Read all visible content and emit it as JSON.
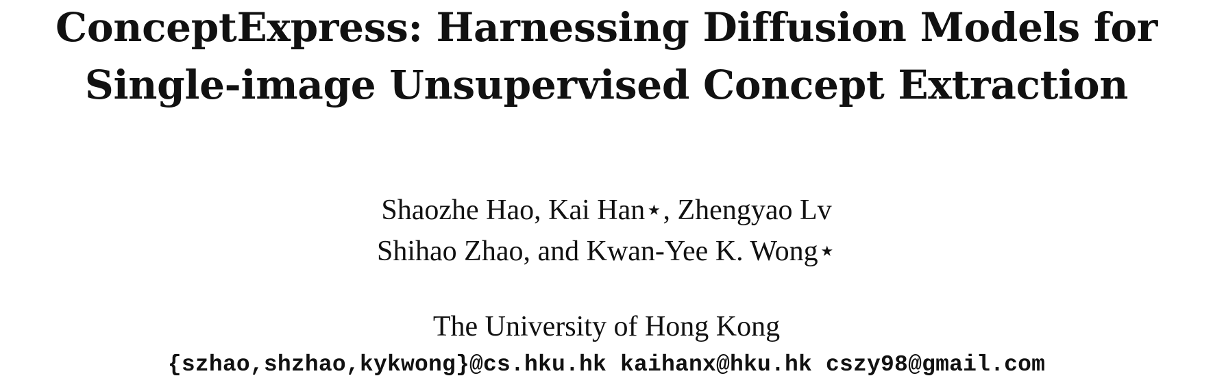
{
  "paper": {
    "title_line_1": "ConceptExpress: Harnessing Diffusion Models for",
    "title_line_2": "Single-image Unsupervised Concept Extraction",
    "authors_line_1": "Shaozhe Hao, Kai Han⋆, Zhengyao Lv",
    "authors_line_2": "Shihao Zhao, and Kwan-Yee K. Wong⋆",
    "affiliation": "The University of Hong Kong",
    "emails": "{szhao,shzhao,kykwong}@cs.hku.hk kaihanx@hku.hk cszy98@gmail.com"
  }
}
